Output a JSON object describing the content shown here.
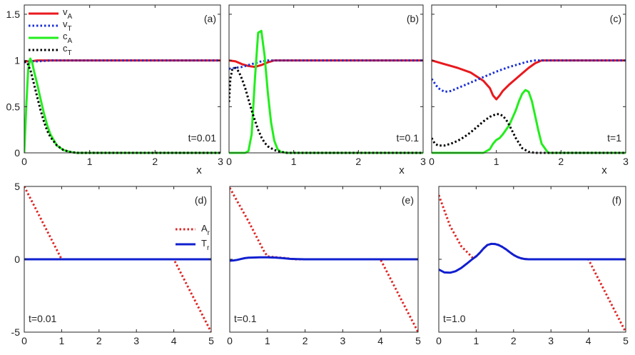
{
  "figure": {
    "colors": {
      "vA": "#e8191e",
      "vT": "#1a2fd6",
      "cA": "#22ee1c",
      "cT": "#000000",
      "Ar": "#e02424",
      "Tr": "#1020d0",
      "axis": "#262626"
    }
  },
  "chart_data": [
    {
      "type": "line",
      "panel_label": "(a)",
      "annotation": "t=0.01",
      "xlabel": "x",
      "xlim": [
        0,
        3
      ],
      "ylim": [
        0,
        1.6
      ],
      "xticks": [
        "0",
        "1",
        "2",
        "3"
      ],
      "yticks": [
        "0",
        "0.5",
        "1",
        "1.5"
      ],
      "legend": [
        "v_A",
        "v_T",
        "c_A",
        "c_T"
      ],
      "legend_position": "top-left",
      "series": [
        {
          "key": "vA",
          "name": "v_A",
          "style": "solid",
          "x": [
            0,
            0.1,
            0.2,
            0.4,
            0.7,
            1,
            2,
            3
          ],
          "y": [
            0.99,
            0.99,
            1,
            1,
            1,
            1,
            1,
            1
          ]
        },
        {
          "key": "vT",
          "name": "v_T",
          "style": "dotted",
          "x": [
            0,
            0.1,
            0.2,
            0.4,
            0.7,
            1,
            2,
            3
          ],
          "y": [
            0.98,
            0.99,
            0.99,
            1,
            1,
            1,
            1,
            1
          ]
        },
        {
          "key": "cA",
          "name": "c_A",
          "style": "solid",
          "x": [
            0,
            0.03,
            0.06,
            0.09,
            0.12,
            0.15,
            0.2,
            0.25,
            0.3,
            0.35,
            0.4,
            0.5,
            0.6,
            0.7,
            0.8,
            1,
            3
          ],
          "y": [
            0,
            0.5,
            0.9,
            1.02,
            0.98,
            0.88,
            0.74,
            0.58,
            0.43,
            0.3,
            0.2,
            0.08,
            0.03,
            0.01,
            0,
            0,
            0
          ]
        },
        {
          "key": "cT",
          "name": "c_T",
          "style": "dotted",
          "x": [
            0,
            0.05,
            0.1,
            0.15,
            0.2,
            0.25,
            0.3,
            0.35,
            0.4,
            0.5,
            0.6,
            0.7,
            0.8,
            1,
            3
          ],
          "y": [
            0.99,
            0.97,
            0.88,
            0.74,
            0.6,
            0.46,
            0.34,
            0.24,
            0.17,
            0.08,
            0.03,
            0.01,
            0,
            0,
            0
          ]
        }
      ]
    },
    {
      "type": "line",
      "panel_label": "(b)",
      "annotation": "t=0.1",
      "xlabel": "x",
      "xlim": [
        0,
        3
      ],
      "ylim": [
        0,
        1.6
      ],
      "xticks": [
        "0",
        "1",
        "2",
        "3"
      ],
      "yticks": [],
      "series": [
        {
          "key": "vA",
          "name": "v_A",
          "style": "solid",
          "x": [
            0,
            0.1,
            0.2,
            0.3,
            0.4,
            0.5,
            0.6,
            0.7,
            0.8,
            1,
            3
          ],
          "y": [
            1,
            0.99,
            0.96,
            0.94,
            0.93,
            0.95,
            0.98,
            1,
            1,
            1,
            1
          ]
        },
        {
          "key": "vT",
          "name": "v_T",
          "style": "dotted",
          "x": [
            0,
            0.1,
            0.2,
            0.3,
            0.4,
            0.5,
            0.6,
            0.8,
            1,
            3
          ],
          "y": [
            0.91,
            0.92,
            0.93,
            0.95,
            0.97,
            0.99,
            1,
            1,
            1,
            1
          ]
        },
        {
          "key": "cA",
          "name": "c_A",
          "style": "solid",
          "x": [
            0,
            0.25,
            0.3,
            0.35,
            0.4,
            0.45,
            0.5,
            0.55,
            0.6,
            0.65,
            0.7,
            0.75,
            0.8,
            0.9,
            3
          ],
          "y": [
            0,
            0,
            0.02,
            0.2,
            0.8,
            1.3,
            1.32,
            1.05,
            0.65,
            0.33,
            0.13,
            0.04,
            0.01,
            0,
            0
          ]
        },
        {
          "key": "cT",
          "name": "c_T",
          "style": "dotted",
          "x": [
            0,
            0.02,
            0.05,
            0.1,
            0.15,
            0.2,
            0.25,
            0.3,
            0.35,
            0.4,
            0.45,
            0.5,
            0.55,
            0.6,
            0.7,
            0.8,
            0.9,
            3
          ],
          "y": [
            0.55,
            0.8,
            0.9,
            0.92,
            0.88,
            0.8,
            0.7,
            0.58,
            0.46,
            0.35,
            0.25,
            0.17,
            0.11,
            0.07,
            0.03,
            0.01,
            0,
            0
          ]
        }
      ]
    },
    {
      "type": "line",
      "panel_label": "(c)",
      "annotation": "t=1",
      "xlabel": "x",
      "xlim": [
        0,
        3
      ],
      "ylim": [
        0,
        1.6
      ],
      "xticks": [
        "0",
        "1",
        "2",
        "3"
      ],
      "yticks": [],
      "series": [
        {
          "key": "vA",
          "name": "v_A",
          "style": "solid",
          "x": [
            0,
            0.2,
            0.4,
            0.6,
            0.8,
            0.9,
            0.95,
            1.0,
            1.05,
            1.1,
            1.2,
            1.3,
            1.4,
            1.5,
            1.6,
            1.7,
            1.8,
            2,
            3
          ],
          "y": [
            1,
            0.96,
            0.92,
            0.87,
            0.78,
            0.7,
            0.62,
            0.58,
            0.62,
            0.67,
            0.74,
            0.8,
            0.86,
            0.92,
            0.97,
            1,
            1,
            1,
            1
          ]
        },
        {
          "key": "vT",
          "name": "v_T",
          "style": "dotted",
          "x": [
            0,
            0.1,
            0.2,
            0.3,
            0.4,
            0.6,
            0.8,
            1.0,
            1.2,
            1.4,
            1.5,
            1.6,
            1.7,
            2,
            3
          ],
          "y": [
            0.8,
            0.7,
            0.66,
            0.67,
            0.7,
            0.76,
            0.82,
            0.88,
            0.93,
            0.97,
            0.99,
            1,
            1,
            1,
            1
          ]
        },
        {
          "key": "cA",
          "name": "c_A",
          "style": "solid",
          "x": [
            0,
            0.8,
            0.9,
            0.95,
            1.0,
            1.05,
            1.1,
            1.2,
            1.3,
            1.35,
            1.4,
            1.45,
            1.5,
            1.55,
            1.6,
            1.65,
            1.7,
            1.8,
            3
          ],
          "y": [
            0,
            0,
            0.04,
            0.1,
            0.14,
            0.16,
            0.2,
            0.3,
            0.46,
            0.56,
            0.64,
            0.68,
            0.66,
            0.56,
            0.4,
            0.24,
            0.1,
            0,
            0
          ]
        },
        {
          "key": "cT",
          "name": "c_T",
          "style": "dotted",
          "x": [
            0,
            0.05,
            0.1,
            0.2,
            0.3,
            0.4,
            0.5,
            0.6,
            0.7,
            0.8,
            0.9,
            1.0,
            1.05,
            1.1,
            1.15,
            1.2,
            1.3,
            1.4,
            1.5,
            1.6,
            3
          ],
          "y": [
            0.16,
            0.1,
            0.08,
            0.08,
            0.1,
            0.13,
            0.17,
            0.22,
            0.28,
            0.34,
            0.39,
            0.42,
            0.42,
            0.4,
            0.36,
            0.3,
            0.16,
            0.05,
            0.01,
            0,
            0
          ]
        }
      ]
    },
    {
      "type": "line",
      "panel_label": "(d)",
      "annotation": "t=0.01",
      "xlim": [
        0,
        5
      ],
      "ylim": [
        -5,
        5
      ],
      "xticks": [
        "0",
        "1",
        "2",
        "3",
        "4",
        "5"
      ],
      "yticks": [
        "-5",
        "0",
        "5"
      ],
      "legend": [
        "A_r",
        "T_r"
      ],
      "legend_position": "center-left",
      "series": [
        {
          "key": "Ar",
          "name": "A_r",
          "style": "dotted",
          "x": [
            0,
            1,
            4,
            5
          ],
          "y": [
            5,
            0,
            0,
            -5
          ]
        },
        {
          "key": "Tr",
          "name": "T_r",
          "style": "solid",
          "x": [
            0,
            5
          ],
          "y": [
            0,
            0
          ]
        }
      ]
    },
    {
      "type": "line",
      "panel_label": "(e)",
      "annotation": "t=0.1",
      "xlim": [
        0,
        5
      ],
      "ylim": [
        -5,
        5
      ],
      "xticks": [
        "0",
        "1",
        "2",
        "3",
        "4",
        "5"
      ],
      "yticks": [],
      "series": [
        {
          "key": "Ar",
          "name": "A_r",
          "style": "dotted",
          "x": [
            0,
            0.5,
            0.9,
            1.0,
            1.2,
            1.5,
            1.7,
            4,
            5
          ],
          "y": [
            4.9,
            2.6,
            0.6,
            0.2,
            0.14,
            0.08,
            0,
            0,
            -5
          ]
        },
        {
          "key": "Tr",
          "name": "T_r",
          "style": "solid",
          "x": [
            0,
            0.1,
            0.2,
            0.3,
            0.4,
            0.5,
            0.6,
            0.8,
            1.0,
            1.2,
            1.4,
            1.6,
            1.8,
            2,
            5
          ],
          "y": [
            -0.1,
            -0.08,
            -0.04,
            0.02,
            0.08,
            0.11,
            0.12,
            0.13,
            0.13,
            0.12,
            0.08,
            0.03,
            0.01,
            0,
            0
          ]
        }
      ]
    },
    {
      "type": "line",
      "panel_label": "(f)",
      "annotation": "t=1.0",
      "xlim": [
        0,
        5
      ],
      "ylim": [
        -5,
        5
      ],
      "xticks": [
        "0",
        "1",
        "2",
        "3",
        "4",
        "5"
      ],
      "yticks": [],
      "series": [
        {
          "key": "Ar",
          "name": "A_r",
          "style": "dotted",
          "x": [
            0,
            0.3,
            0.6,
            0.9,
            1.0,
            1.1,
            1.2,
            1.3,
            1.4,
            1.5,
            1.6,
            1.7,
            1.8,
            1.9,
            2.0,
            2.1,
            2.2,
            2.3,
            2.4,
            2.5,
            4,
            5
          ],
          "y": [
            4.4,
            2.3,
            0.9,
            0.12,
            0.2,
            0.45,
            0.75,
            0.98,
            1.06,
            1.05,
            0.98,
            0.85,
            0.68,
            0.48,
            0.3,
            0.16,
            0.07,
            0.02,
            0,
            0,
            0,
            -5
          ]
        },
        {
          "key": "Tr",
          "name": "T_r",
          "style": "solid",
          "x": [
            0,
            0.15,
            0.3,
            0.45,
            0.6,
            0.75,
            0.9,
            1.0,
            1.1,
            1.2,
            1.3,
            1.4,
            1.5,
            1.6,
            1.7,
            1.8,
            1.9,
            2.0,
            2.1,
            2.2,
            2.3,
            2.4,
            2.5,
            5
          ],
          "y": [
            -0.7,
            -0.9,
            -0.92,
            -0.82,
            -0.6,
            -0.3,
            0.02,
            0.2,
            0.45,
            0.75,
            0.98,
            1.06,
            1.05,
            0.98,
            0.85,
            0.68,
            0.48,
            0.3,
            0.16,
            0.07,
            0.02,
            0,
            0,
            0
          ]
        }
      ]
    }
  ]
}
